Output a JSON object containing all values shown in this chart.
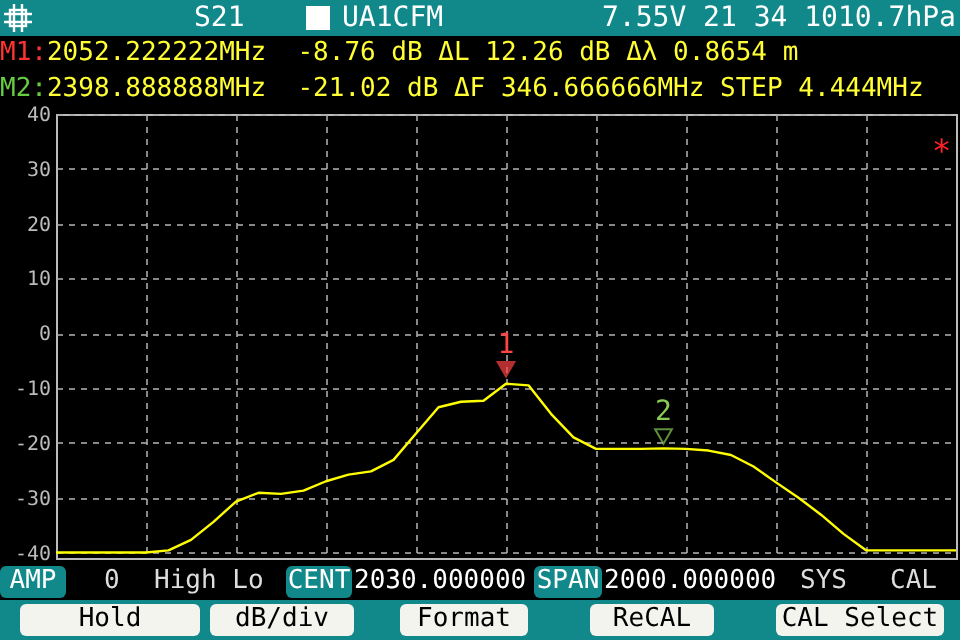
{
  "chart_data": {
    "type": "line",
    "categories": [
      null,
      null,
      null,
      null,
      null,
      null,
      null,
      null,
      null,
      null,
      null,
      null,
      null,
      null,
      null,
      null,
      null,
      null,
      null,
      null,
      null,
      null,
      null,
      null,
      null,
      null,
      null,
      null,
      null,
      null,
      null,
      null,
      null,
      null,
      null,
      null,
      null,
      null,
      null,
      null,
      null
    ],
    "series": [
      {
        "color": "#ffff00",
        "values": [
          -40,
          -40,
          -40,
          -40,
          -40,
          -39.6,
          -37.7,
          -34.4,
          -30.7,
          -29.1,
          -29.3,
          -28.7,
          -27,
          -25.8,
          -25.2,
          -23.1,
          -18.3,
          -13.5,
          -12.5,
          -12.3,
          -9.2,
          -9.5,
          -14.7,
          -19,
          -21.1,
          -21.1,
          -21.1,
          -21,
          -21.1,
          -21.4,
          -22.2,
          -24.3,
          -27.2,
          -30,
          -33.1,
          -36.6,
          -39.6,
          -39.6,
          -39.6,
          -39.6,
          -39.6
        ]
      }
    ],
    "ylim": [
      -41,
      40
    ],
    "yticks": [
      40,
      30,
      20,
      10,
      0,
      -10,
      -20,
      -30,
      -40
    ],
    "tick_labels": "y",
    "grid": true,
    "line_style": "solid",
    "annotations": [
      "S21",
      "UA1CFM",
      "7.55V 21 34 1010.7hPa",
      "M1:2052.222222MHz  -8.76 dB ΔL 12.26 dB Δλ 0.8654 m",
      "M2:2398.888888MHz  -21.02 dB ΔF 346.666666MHz STEP 4.444MHz",
      "AMP",
      "0",
      "High Lo",
      "CENT",
      "2030.000000",
      "SPAN",
      "2000.000000",
      "SYS",
      "CAL",
      "Hold",
      "dB/div",
      "Format",
      "ReCAL",
      "CAL Select",
      "*",
      {
        "text": "1",
        "y": -8.76
      },
      {
        "text": "2",
        "y": -21.02
      }
    ]
  }
}
